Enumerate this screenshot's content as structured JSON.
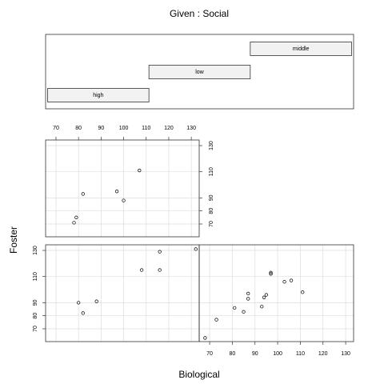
{
  "chart_data": {
    "type": "coplot",
    "title": "Given : Social",
    "xlabel": "Biological",
    "ylabel": "Foster",
    "given": {
      "levels": [
        "high",
        "low",
        "middle"
      ],
      "intervals": [
        [
          0.5,
          1.5
        ],
        [
          1.5,
          2.5
        ],
        [
          2.5,
          3.5
        ]
      ],
      "lim": [
        0.48,
        3.52
      ]
    },
    "panels": [
      {
        "x": [
          82,
          80,
          88,
          108,
          116,
          116,
          132
        ],
        "y": [
          82,
          90,
          91,
          115,
          115,
          129,
          131
        ]
      },
      {
        "x": [
          68,
          73,
          81,
          85,
          87,
          87,
          93,
          94,
          95,
          97,
          97,
          103,
          106,
          111
        ],
        "y": [
          63,
          77,
          86,
          83,
          93,
          97,
          87,
          94,
          96,
          112,
          113,
          106,
          107,
          98
        ]
      },
      {
        "x": [
          78,
          79,
          82,
          97,
          100,
          107
        ],
        "y": [
          71,
          75,
          93,
          95,
          88,
          111
        ]
      }
    ],
    "xlim": [
      65.4,
      133.5
    ],
    "ylim": [
      60.2,
      134.3
    ],
    "xticks": [
      70,
      80,
      90,
      100,
      110,
      120,
      130
    ],
    "yticks": [
      70,
      80,
      90,
      110,
      130
    ],
    "grid": true
  }
}
